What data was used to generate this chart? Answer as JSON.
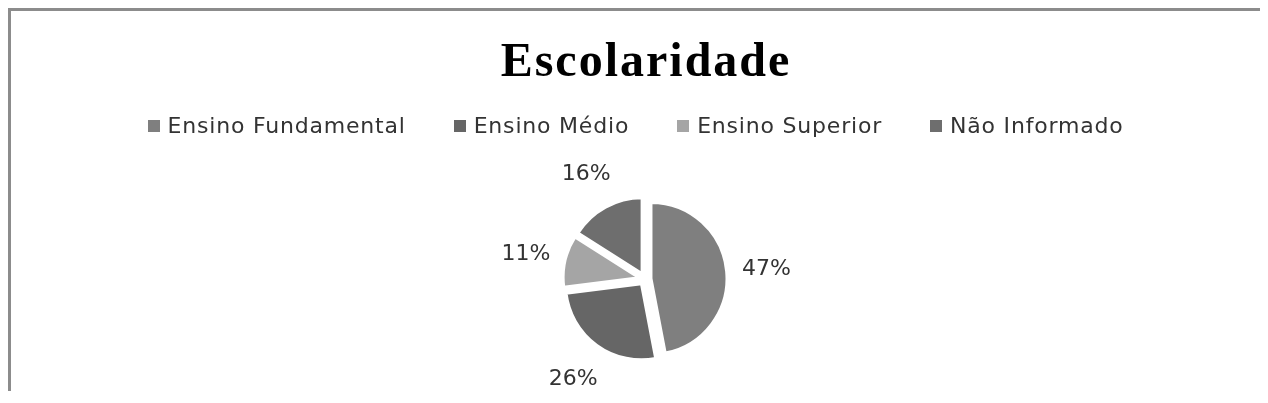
{
  "chart_data": {
    "type": "pie",
    "title": "Escolaridade",
    "categories": [
      "Ensino Fundamental",
      "Ensino Médio",
      "Ensino Superior",
      "Não Informado"
    ],
    "values": [
      47,
      26,
      11,
      16
    ],
    "colors": [
      "#7f7f7f",
      "#666666",
      "#a5a5a5",
      "#6e6e6e"
    ],
    "value_labels": [
      "47%",
      "26%",
      "11%",
      "16%"
    ],
    "legend": "top"
  }
}
